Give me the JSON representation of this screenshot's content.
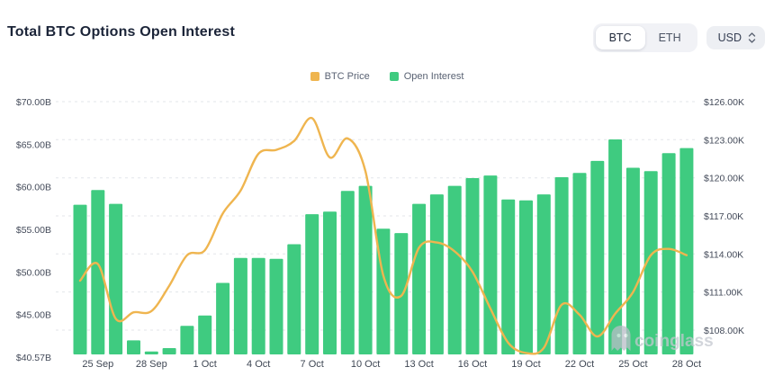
{
  "header": {
    "title": "Total BTC Options Open Interest"
  },
  "controls": {
    "assets": [
      "BTC",
      "ETH"
    ],
    "active_asset": "BTC",
    "currency": "USD"
  },
  "legend": [
    {
      "label": "BTC Price",
      "color": "#EFB54F"
    },
    {
      "label": "Open Interest",
      "color": "#3FCB80"
    }
  ],
  "watermark": "coinglass",
  "chart_data": {
    "type": "bar+line",
    "title": "Total BTC Options Open Interest",
    "x": [
      "24 Sep",
      "25 Sep",
      "26 Sep",
      "27 Sep",
      "28 Sep",
      "29 Sep",
      "30 Sep",
      "1 Oct",
      "2 Oct",
      "3 Oct",
      "4 Oct",
      "5 Oct",
      "6 Oct",
      "7 Oct",
      "8 Oct",
      "9 Oct",
      "10 Oct",
      "11 Oct",
      "12 Oct",
      "13 Oct",
      "14 Oct",
      "15 Oct",
      "16 Oct",
      "17 Oct",
      "18 Oct",
      "19 Oct",
      "20 Oct",
      "21 Oct",
      "22 Oct",
      "23 Oct",
      "24 Oct",
      "25 Oct",
      "26 Oct",
      "27 Oct",
      "28 Oct"
    ],
    "x_tick_labels": [
      "25 Sep",
      "28 Sep",
      "1 Oct",
      "4 Oct",
      "7 Oct",
      "10 Oct",
      "13 Oct",
      "16 Oct",
      "19 Oct",
      "22 Oct",
      "25 Oct",
      "28 Oct"
    ],
    "series": [
      {
        "name": "Open Interest",
        "type": "bar",
        "axis": "left",
        "unit": "$B",
        "color": "#3FCB80",
        "values": [
          58.0,
          59.7,
          58.1,
          42.2,
          40.9,
          41.3,
          43.9,
          45.1,
          48.9,
          51.8,
          51.8,
          51.7,
          53.4,
          56.9,
          57.2,
          59.6,
          60.2,
          55.2,
          54.7,
          58.1,
          59.2,
          60.2,
          61.1,
          61.4,
          58.6,
          58.5,
          59.2,
          61.2,
          61.7,
          63.1,
          65.6,
          62.3,
          61.9,
          64.0,
          64.6
        ]
      },
      {
        "name": "BTC Price",
        "type": "line",
        "axis": "right",
        "unit": "$K",
        "color": "#EFB54F",
        "values": [
          111.9,
          113.2,
          108.9,
          109.4,
          109.5,
          111.5,
          113.9,
          114.3,
          117.2,
          119.0,
          121.9,
          122.2,
          122.9,
          124.7,
          121.6,
          123.1,
          120.5,
          112.3,
          110.7,
          114.5,
          114.9,
          114.2,
          112.6,
          109.7,
          107.0,
          106.2,
          106.6,
          110.0,
          109.2,
          107.5,
          109.3,
          111.0,
          113.9,
          114.4,
          113.9
        ]
      }
    ],
    "left_axis": {
      "min": 40.57,
      "max": 70,
      "ticks": [
        "$70.00B",
        "$65.00B",
        "$60.00B",
        "$55.00B",
        "$50.00B",
        "$45.00B",
        "$40.57B"
      ]
    },
    "right_axis": {
      "min": 108,
      "max": 126,
      "ticks": [
        "$126.00K",
        "$123.00K",
        "$120.00K",
        "$117.00K",
        "$114.00K",
        "$111.00K",
        "$108.00K"
      ]
    },
    "grid": "horizontal-dashed",
    "legend_position": "top-center"
  }
}
